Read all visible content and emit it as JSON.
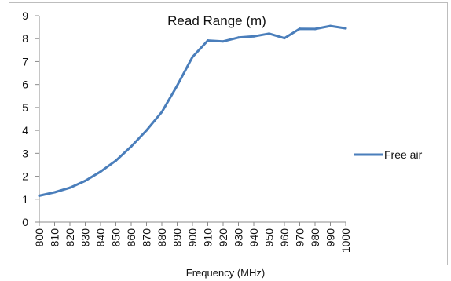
{
  "chart_data": {
    "type": "line",
    "title": "Read Range (m)",
    "xlabel": "Frequency (MHz)",
    "ylabel": "",
    "x": [
      800,
      810,
      820,
      830,
      840,
      850,
      860,
      870,
      880,
      890,
      900,
      910,
      920,
      930,
      940,
      950,
      960,
      970,
      980,
      990,
      1000
    ],
    "xlim": [
      800,
      1000
    ],
    "ylim": [
      0,
      9
    ],
    "yticks": [
      0,
      1,
      2,
      3,
      4,
      5,
      6,
      7,
      8,
      9
    ],
    "grid": false,
    "legend": "right",
    "series": [
      {
        "name": "Free air",
        "color": "#4a7ebb",
        "values": [
          1.15,
          1.3,
          1.5,
          1.8,
          2.2,
          2.68,
          3.3,
          4.0,
          4.8,
          5.95,
          7.2,
          7.92,
          7.88,
          8.05,
          8.1,
          8.22,
          8.02,
          8.43,
          8.42,
          8.55,
          8.45
        ]
      }
    ]
  }
}
